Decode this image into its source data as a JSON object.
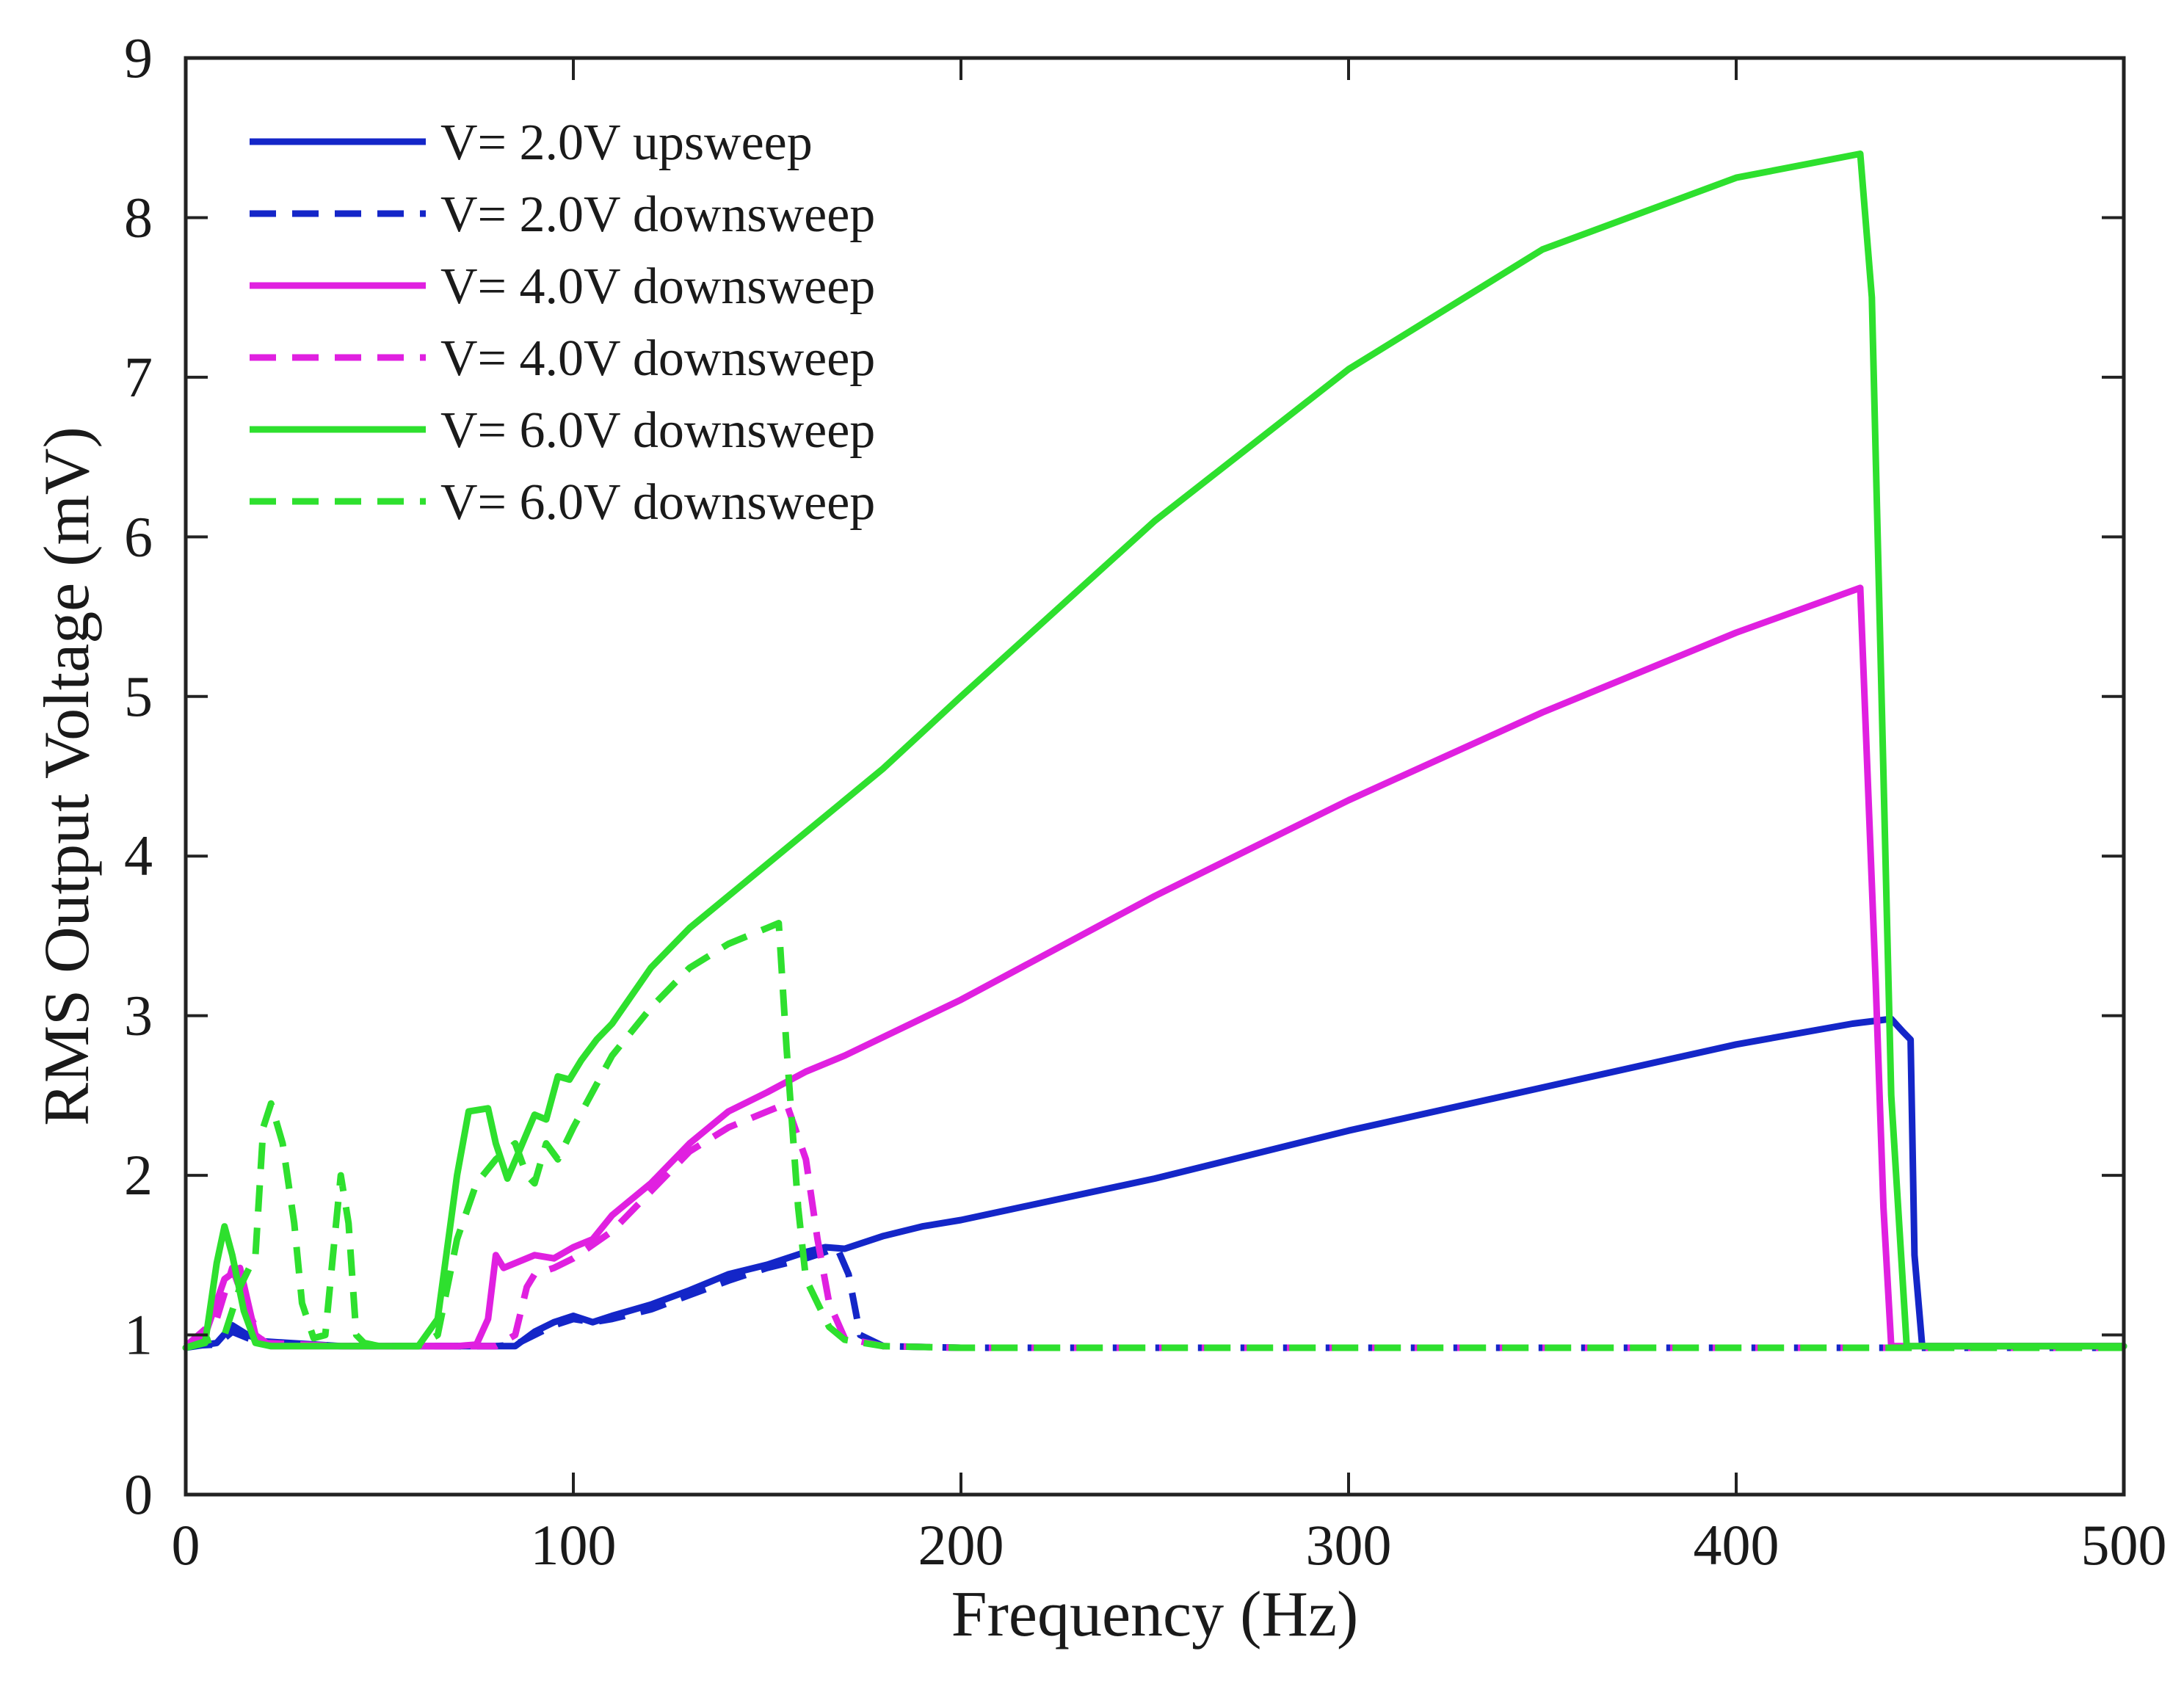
{
  "chart_data": {
    "type": "line",
    "title": "",
    "xlabel": "Frequency (Hz)",
    "ylabel": "RMS Output Voltage (mV)",
    "xlim": [
      0,
      500
    ],
    "ylim": [
      0,
      9
    ],
    "xticks": [
      0,
      100,
      200,
      300,
      400,
      500
    ],
    "yticks": [
      0,
      1,
      2,
      3,
      4,
      5,
      6,
      7,
      8,
      9
    ],
    "grid": false,
    "legend_position": "top-left",
    "series": [
      {
        "name": "V= 2.0V upsweep",
        "color": "#1426c8",
        "dash": "solid",
        "x": [
          0,
          8,
          12,
          16,
          20,
          40,
          60,
          80,
          85,
          90,
          95,
          100,
          105,
          110,
          120,
          130,
          140,
          150,
          160,
          165,
          170,
          180,
          190,
          200,
          250,
          300,
          350,
          400,
          430,
          440,
          443,
          445,
          446,
          448,
          460,
          500
        ],
        "y": [
          0.92,
          0.95,
          1.06,
          1.0,
          0.96,
          0.93,
          0.93,
          0.93,
          0.93,
          1.02,
          1.08,
          1.12,
          1.08,
          1.12,
          1.19,
          1.28,
          1.38,
          1.44,
          1.52,
          1.55,
          1.54,
          1.62,
          1.68,
          1.72,
          1.98,
          2.28,
          2.55,
          2.82,
          2.95,
          2.98,
          2.9,
          2.85,
          1.5,
          0.93,
          0.93,
          0.93
        ]
      },
      {
        "name": "V= 2.0V downsweep",
        "color": "#1426c8",
        "dash": "dashed",
        "x": [
          0,
          8,
          12,
          16,
          20,
          40,
          60,
          80,
          85,
          90,
          95,
          100,
          105,
          110,
          120,
          130,
          140,
          150,
          160,
          165,
          168,
          171,
          174,
          180,
          200,
          300,
          400,
          500
        ],
        "y": [
          0.93,
          0.94,
          1.02,
          0.98,
          0.95,
          0.93,
          0.93,
          0.93,
          0.94,
          1.0,
          1.06,
          1.1,
          1.08,
          1.1,
          1.16,
          1.25,
          1.34,
          1.42,
          1.48,
          1.52,
          1.55,
          1.38,
          1.0,
          0.93,
          0.92,
          0.92,
          0.92,
          0.92
        ]
      },
      {
        "name": "V= 4.0V downsweep",
        "color": "#e020e0",
        "dash": "solid",
        "x": [
          0,
          5,
          10,
          14,
          18,
          22,
          40,
          60,
          70,
          75,
          78,
          80,
          82,
          85,
          90,
          95,
          100,
          105,
          110,
          120,
          130,
          140,
          150,
          160,
          170,
          200,
          250,
          300,
          350,
          400,
          432,
          436,
          438,
          440,
          460,
          500
        ],
        "y": [
          0.92,
          1.0,
          1.35,
          1.42,
          1.0,
          0.93,
          0.93,
          0.93,
          0.93,
          0.94,
          1.1,
          1.5,
          1.42,
          1.45,
          1.5,
          1.48,
          1.55,
          1.6,
          1.75,
          1.95,
          2.2,
          2.4,
          2.52,
          2.65,
          2.75,
          3.1,
          3.75,
          4.35,
          4.9,
          5.4,
          5.68,
          3.2,
          1.8,
          0.93,
          0.93,
          0.93
        ]
      },
      {
        "name": "V= 4.0V downsweep",
        "color": "#e020e0",
        "dash": "dashed",
        "x": [
          0,
          8,
          12,
          16,
          20,
          40,
          60,
          80,
          85,
          88,
          90,
          95,
          100,
          110,
          120,
          130,
          140,
          150,
          155,
          160,
          163,
          166,
          170,
          180,
          200,
          300,
          400,
          500
        ],
        "y": [
          0.93,
          1.1,
          1.42,
          1.15,
          0.95,
          0.93,
          0.93,
          0.93,
          1.0,
          1.3,
          1.38,
          1.42,
          1.48,
          1.65,
          1.9,
          2.15,
          2.3,
          2.4,
          2.45,
          2.1,
          1.6,
          1.2,
          0.98,
          0.93,
          0.92,
          0.92,
          0.92,
          0.92
        ]
      },
      {
        "name": "V= 6.0V downsweep",
        "color": "#2ee02e",
        "dash": "solid",
        "x": [
          0,
          5,
          8,
          10,
          12,
          15,
          18,
          22,
          40,
          60,
          65,
          70,
          73,
          78,
          80,
          83,
          86,
          90,
          93,
          96,
          99,
          102,
          106,
          110,
          120,
          130,
          140,
          150,
          160,
          170,
          180,
          200,
          250,
          300,
          350,
          400,
          432,
          435,
          437,
          440,
          444,
          460,
          500
        ],
        "y": [
          0.92,
          0.95,
          1.45,
          1.68,
          1.5,
          1.15,
          0.95,
          0.93,
          0.93,
          0.93,
          1.1,
          2.0,
          2.4,
          2.42,
          2.2,
          1.98,
          2.15,
          2.38,
          2.35,
          2.62,
          2.6,
          2.72,
          2.85,
          2.95,
          3.3,
          3.55,
          3.75,
          3.95,
          4.15,
          4.35,
          4.55,
          5.0,
          6.1,
          7.05,
          7.8,
          8.25,
          8.4,
          7.5,
          5.5,
          2.5,
          0.93,
          0.93,
          0.93
        ]
      },
      {
        "name": "V= 6.0V downsweep",
        "color": "#2ee02e",
        "dash": "dashed",
        "x": [
          0,
          10,
          14,
          18,
          20,
          22,
          25,
          28,
          30,
          33,
          36,
          38,
          40,
          42,
          44,
          46,
          50,
          60,
          65,
          70,
          75,
          80,
          85,
          88,
          90,
          93,
          96,
          100,
          110,
          120,
          130,
          140,
          150,
          153,
          155,
          158,
          160,
          163,
          166,
          170,
          180,
          200,
          300,
          400,
          500
        ],
        "y": [
          0.92,
          1.0,
          1.3,
          1.5,
          2.3,
          2.45,
          2.2,
          1.7,
          1.2,
          0.98,
          1.0,
          1.5,
          2.0,
          1.7,
          1.0,
          0.95,
          0.93,
          0.93,
          1.0,
          1.6,
          1.95,
          2.1,
          2.2,
          2.0,
          1.95,
          2.2,
          2.1,
          2.3,
          2.75,
          3.05,
          3.3,
          3.45,
          3.55,
          3.58,
          2.8,
          1.8,
          1.35,
          1.2,
          1.05,
          0.97,
          0.93,
          0.92,
          0.92,
          0.92,
          0.92
        ]
      }
    ]
  }
}
